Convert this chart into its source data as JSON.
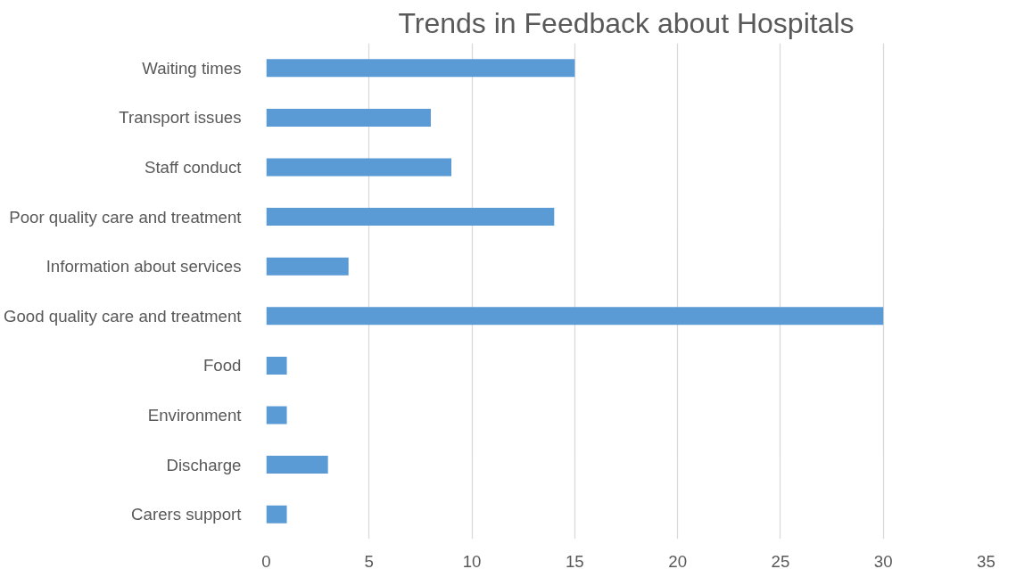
{
  "chart_data": {
    "type": "bar",
    "orientation": "horizontal",
    "title": "Trends in Feedback about Hospitals",
    "categories": [
      "Waiting times",
      "Transport issues",
      "Staff conduct",
      "Poor quality care and treatment",
      "Information about services",
      "Good quality care and treatment",
      "Food",
      "Environment",
      "Discharge",
      "Carers support"
    ],
    "values": [
      15,
      8,
      9,
      14,
      4,
      30,
      1,
      1,
      3,
      1
    ],
    "color": "#5b9bd5",
    "xlim": [
      0,
      35
    ],
    "xticks": [
      0,
      5,
      10,
      15,
      20,
      25,
      30,
      35
    ],
    "grid": "x"
  }
}
